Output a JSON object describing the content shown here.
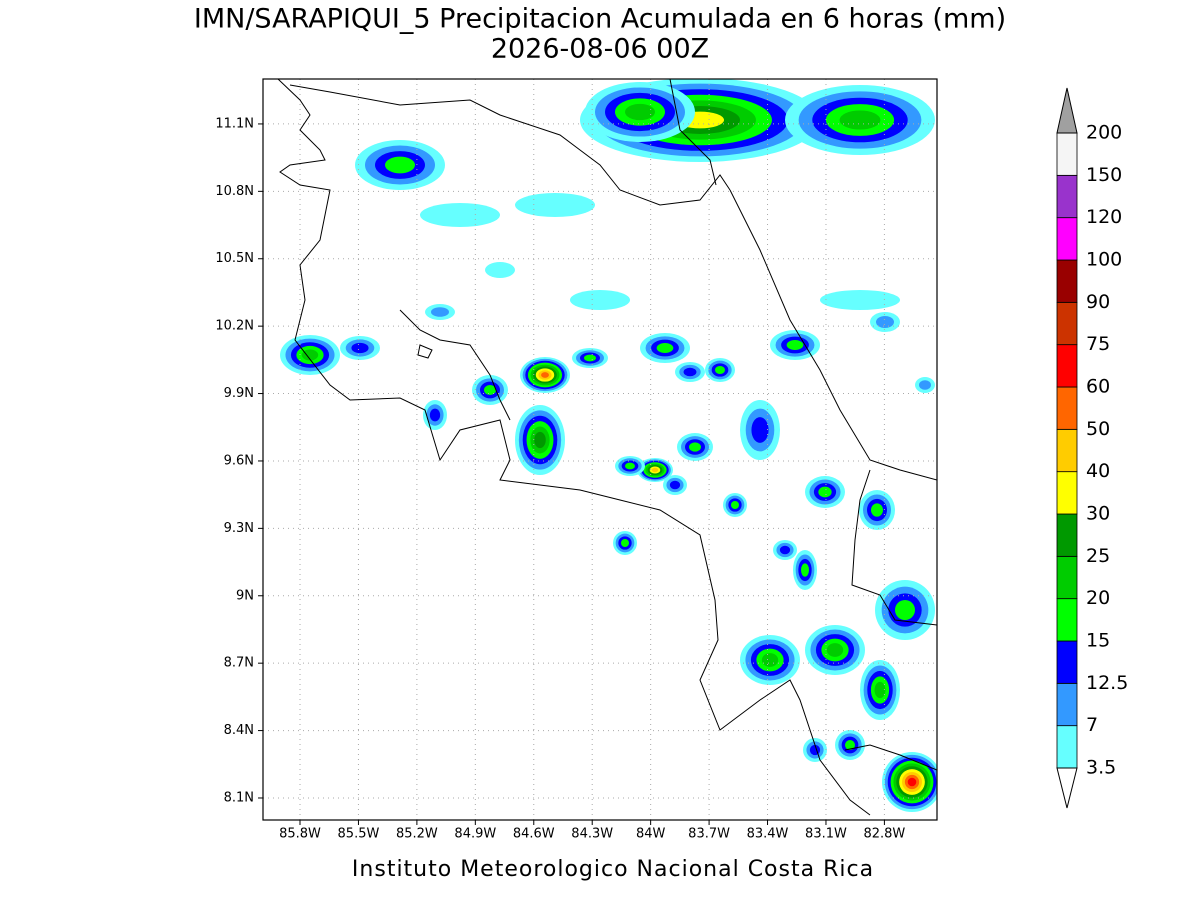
{
  "title": "IMN/SARAPIQUI_5 Precipitacion Acumulada en 6 horas (mm)",
  "subtitle": "2026-08-06 00Z",
  "map": {
    "lonlim": [
      -85.99,
      -82.53
    ],
    "latlim": [
      8.002,
      11.3
    ],
    "lon_ticks": [
      {
        "value": -85.8,
        "label": "85.8W"
      },
      {
        "value": -85.5,
        "label": "85.5W"
      },
      {
        "value": -85.2,
        "label": "85.2W"
      },
      {
        "value": -84.9,
        "label": "84.9W"
      },
      {
        "value": -84.6,
        "label": "84.6W"
      },
      {
        "value": -84.3,
        "label": "84.3W"
      },
      {
        "value": -84.0,
        "label": "84W"
      },
      {
        "value": -83.7,
        "label": "83.7W"
      },
      {
        "value": -83.4,
        "label": "83.4W"
      },
      {
        "value": -83.1,
        "label": "83.1W"
      },
      {
        "value": -82.8,
        "label": "82.8W"
      }
    ],
    "lat_ticks": [
      {
        "value": 8.1,
        "label": "8.1N"
      },
      {
        "value": 8.4,
        "label": "8.4N"
      },
      {
        "value": 8.7,
        "label": "8.7N"
      },
      {
        "value": 9.0,
        "label": "9N"
      },
      {
        "value": 9.3,
        "label": "9.3N"
      },
      {
        "value": 9.6,
        "label": "9.6N"
      },
      {
        "value": 9.9,
        "label": "9.9N"
      },
      {
        "value": 10.2,
        "label": "10.2N"
      },
      {
        "value": 10.5,
        "label": "10.5N"
      },
      {
        "value": 10.8,
        "label": "10.8N"
      },
      {
        "value": 11.1,
        "label": "11.1N"
      }
    ],
    "grid": true
  },
  "colorbar": {
    "levels": [
      3.5,
      7,
      12.5,
      15,
      20,
      25,
      30,
      40,
      50,
      60,
      75,
      90,
      100,
      120,
      150,
      200
    ],
    "colors": [
      "#66ffff",
      "#3399ff",
      "#0000ff",
      "#00ff00",
      "#00cc00",
      "#009900",
      "#ffff00",
      "#ffcc00",
      "#ff6600",
      "#ff0000",
      "#cc3300",
      "#990000",
      "#ff00ff",
      "#9933cc",
      "#f5f5f5"
    ],
    "under_color": "#ffffff",
    "over_color": "#a0a0a0"
  },
  "footer": "Instituto Meteorologico Nacional Costa Rica"
}
